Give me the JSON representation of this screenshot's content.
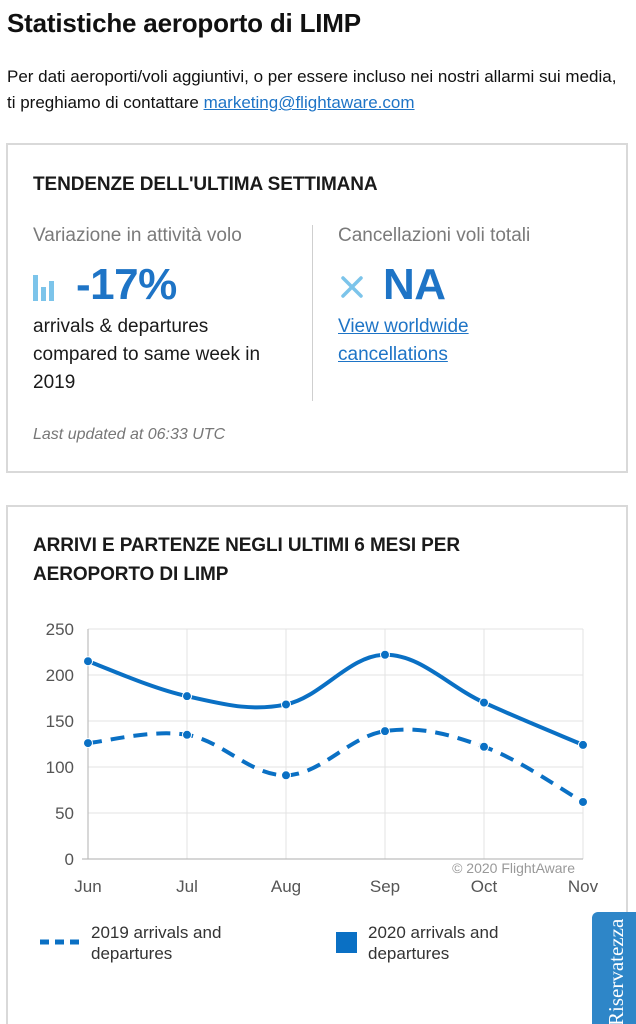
{
  "page": {
    "title": "Statistiche aeroporto di LIMP",
    "intro_text": "Per dati aeroporti/voli aggiuntivi, o per essere incluso nei nostri allarmi sui media, ti preghiamo di contattare ",
    "contact_email": "marketing@flightaware.com"
  },
  "trends": {
    "heading": "TENDENZE DELL'ULTIMA SETTIMANA",
    "activity": {
      "label": "Variazione in attività volo",
      "value": "-17%",
      "description": "arrivals & departures compared to same week in 2019",
      "icon": "bar-chart-icon"
    },
    "cancellations": {
      "label": "Cancellazioni voli totali",
      "value": "NA",
      "link_text": "View worldwide cancellations",
      "icon": "close-icon"
    },
    "last_updated": "Last updated at 06:33 UTC"
  },
  "chart_section": {
    "heading": "ARRIVI E PARTENZE NEGLI ULTIMI 6 MESI PER AEROPORTO DI LIMP"
  },
  "privacy_tab": {
    "label": "Riservatezza"
  },
  "colors": {
    "accent": "#1e74c6",
    "series_2020": "#0a70c4",
    "series_2019": "#0a70c4",
    "icon_light": "#7cc4ea"
  },
  "chart_data": {
    "type": "line",
    "title": "ARRIVI E PARTENZE NEGLI ULTIMI 6 MESI PER AEROPORTO DI LIMP",
    "xlabel": "",
    "ylabel": "",
    "categories": [
      "Jun",
      "Jul",
      "Aug",
      "Sep",
      "Oct",
      "Nov"
    ],
    "ylim": [
      0,
      250
    ],
    "yticks": [
      0,
      50,
      100,
      150,
      200,
      250
    ],
    "grid": true,
    "legend_position": "bottom",
    "credit": "© 2020 FlightAware",
    "series": [
      {
        "name": "2019 arrivals and departures",
        "style": "dashed",
        "values": [
          126,
          135,
          91,
          139,
          122,
          62
        ]
      },
      {
        "name": "2020 arrivals and departures",
        "style": "solid",
        "values": [
          215,
          177,
          168,
          222,
          170,
          124
        ]
      }
    ]
  }
}
